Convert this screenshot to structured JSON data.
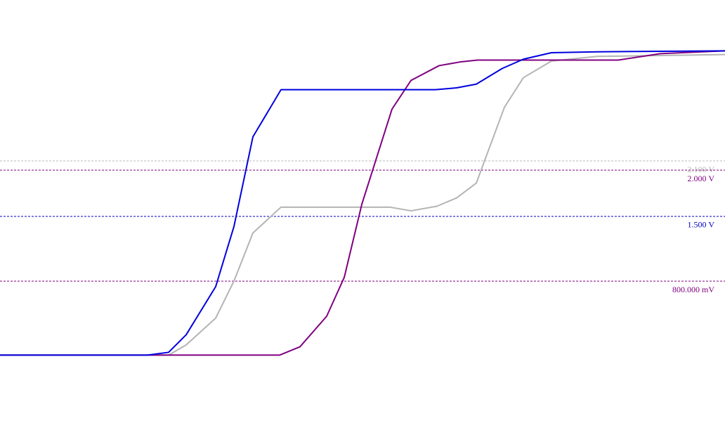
{
  "chart_data": {
    "type": "line",
    "xlim": [
      0,
      1032
    ],
    "ylim": [
      -0.81,
      3.84
    ],
    "series": [
      {
        "color": "#b4b4b4",
        "x": [
          0,
          240,
          265,
          307,
          333,
          360,
          400,
          555,
          585,
          622,
          650,
          678,
          718,
          745,
          785,
          850,
          1032
        ],
        "values": [
          0,
          0,
          0.11,
          0.4,
          0.8,
          1.32,
          1.6,
          1.6,
          1.56,
          1.61,
          1.7,
          1.86,
          2.68,
          3.0,
          3.18,
          3.23,
          3.25
        ]
      },
      {
        "color": "#800080",
        "x": [
          0,
          398,
          427,
          465,
          490,
          515,
          558,
          585,
          625,
          655,
          680,
          740,
          880,
          940,
          1032
        ],
        "values": [
          0,
          0,
          0.09,
          0.42,
          0.84,
          1.63,
          2.66,
          2.97,
          3.13,
          3.17,
          3.19,
          3.19,
          3.19,
          3.26,
          3.29
        ]
      },
      {
        "color": "#0000e0",
        "x": [
          0,
          210,
          240,
          265,
          307,
          333,
          360,
          400,
          560,
          620,
          650,
          678,
          715,
          745,
          785,
          850,
          1032
        ],
        "values": [
          0,
          0,
          0.03,
          0.22,
          0.74,
          1.39,
          2.36,
          2.87,
          2.87,
          2.87,
          2.89,
          2.93,
          3.1,
          3.2,
          3.27,
          3.28,
          3.29
        ]
      }
    ],
    "thresholds": [
      {
        "value": 2.1,
        "label": "2.100 V",
        "color": "#b8b8b8"
      },
      {
        "value": 2.0,
        "label": "2.000 V",
        "color": "#800080"
      },
      {
        "value": 1.5,
        "label": "1.500 V",
        "color": "#0000c0"
      },
      {
        "value": 0.8,
        "label": "800.000 mV",
        "color": "#800080"
      }
    ]
  }
}
